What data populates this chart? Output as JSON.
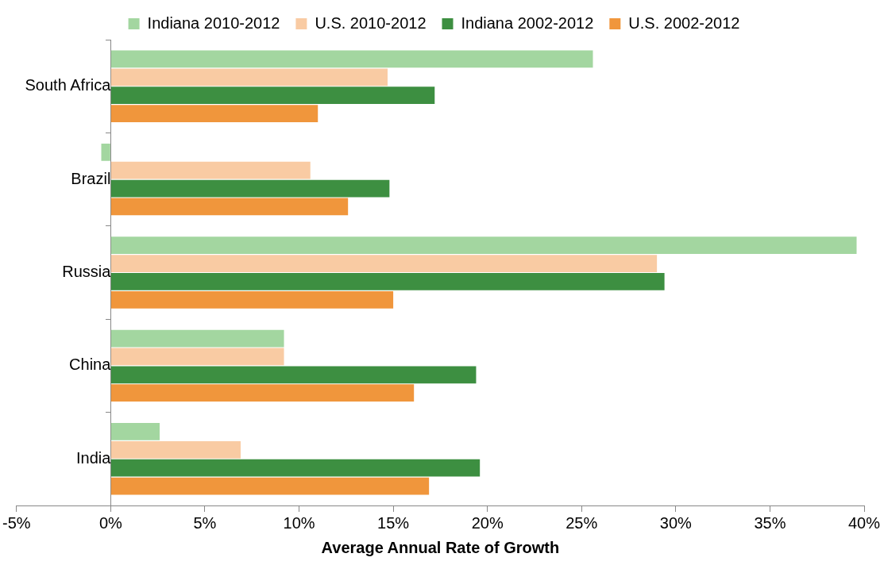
{
  "chart_data": {
    "type": "bar",
    "orientation": "horizontal",
    "xlabel": "Average Annual Rate of Growth",
    "categories": [
      "South Africa",
      "Brazil",
      "Russia",
      "China",
      "India"
    ],
    "series": [
      {
        "name": "Indiana 2010-2012",
        "color": "#a3d6a0",
        "values": [
          25.6,
          -0.5,
          39.6,
          9.2,
          2.6
        ]
      },
      {
        "name": "U.S. 2010-2012",
        "color": "#f9cba3",
        "values": [
          14.7,
          10.6,
          29.0,
          9.2,
          6.9
        ]
      },
      {
        "name": "Indiana 2002-2012",
        "color": "#3d8f41",
        "values": [
          17.2,
          14.8,
          29.4,
          19.4,
          19.6
        ]
      },
      {
        "name": "U.S. 2002-2012",
        "color": "#f0963c",
        "values": [
          11.0,
          12.6,
          15.0,
          16.1,
          16.9
        ]
      }
    ],
    "xlim": [
      -5,
      40
    ],
    "xticks": [
      {
        "value": -5,
        "label": "-5%"
      },
      {
        "value": 0,
        "label": "0%"
      },
      {
        "value": 5,
        "label": "5%"
      },
      {
        "value": 10,
        "label": "10%"
      },
      {
        "value": 15,
        "label": "15%"
      },
      {
        "value": 20,
        "label": "20%"
      },
      {
        "value": 25,
        "label": "25%"
      },
      {
        "value": 30,
        "label": "30%"
      },
      {
        "value": 35,
        "label": "35%"
      },
      {
        "value": 40,
        "label": "40%"
      }
    ],
    "grid": false,
    "legend": "top"
  }
}
